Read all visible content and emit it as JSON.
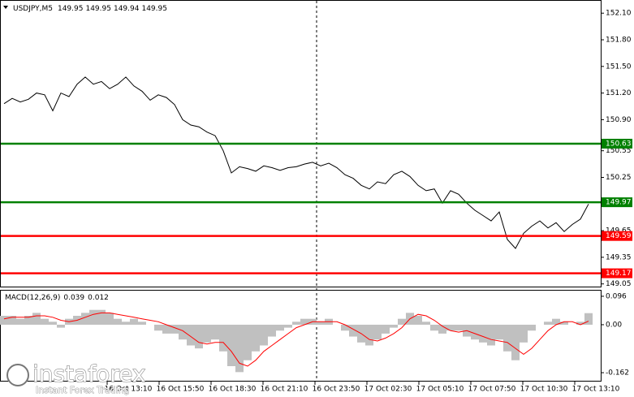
{
  "chart_data": [
    {
      "type": "line",
      "symbol": "USDJPY,M5",
      "ohlc": [
        149.95,
        149.95,
        149.94,
        149.95
      ],
      "color": "#000000",
      "values": [
        151.08,
        151.14,
        151.1,
        151.13,
        151.2,
        151.18,
        151.0,
        151.2,
        151.16,
        151.3,
        151.38,
        151.3,
        151.33,
        151.25,
        151.3,
        151.38,
        151.28,
        151.22,
        151.12,
        151.18,
        151.15,
        151.07,
        150.9,
        150.84,
        150.82,
        150.76,
        150.72,
        150.55,
        150.3,
        150.37,
        150.35,
        150.32,
        150.38,
        150.36,
        150.33,
        150.36,
        150.37,
        150.4,
        150.42,
        150.38,
        150.41,
        150.36,
        150.28,
        150.24,
        150.16,
        150.12,
        150.2,
        150.18,
        150.28,
        150.32,
        150.26,
        150.16,
        150.1,
        150.12,
        149.96,
        150.1,
        150.06,
        149.96,
        149.88,
        149.82,
        149.76,
        149.86,
        149.55,
        149.45,
        149.62,
        149.7,
        149.76,
        149.68,
        149.74,
        149.64,
        149.72,
        149.78,
        149.95
      ],
      "ylim": [
        149.02,
        152.23
      ],
      "yticks": [
        {
          "value": 152.1,
          "label": "152.10"
        },
        {
          "value": 151.8,
          "label": "151.80"
        },
        {
          "value": 151.5,
          "label": "151.50"
        },
        {
          "value": 151.2,
          "label": "151.20"
        },
        {
          "value": 150.9,
          "label": "150.90"
        },
        150.55,
        150.25,
        149.65,
        149.35,
        149.05
      ],
      "levels": [
        {
          "value": 150.63,
          "color": "#008000"
        },
        {
          "value": 149.97,
          "color": "#008000"
        },
        {
          "value": 149.59,
          "color": "#ff0000"
        },
        {
          "value": 149.17,
          "color": "#ff0000"
        }
      ],
      "time_labels": [
        "16 Oct 13:10",
        "16 Oct 15:50",
        "16 Oct 18:30",
        "16 Oct 21:10",
        "16 Oct 23:50",
        "17 Oct 02:30",
        "17 Oct 05:10",
        "17 Oct 07:50",
        "17 Oct 10:30",
        "17 Oct 13:10"
      ]
    },
    {
      "type": "macd",
      "name": "MACD(12,26,9)",
      "current": [
        0.039,
        0.012
      ],
      "histogram_color": "#c0c0c0",
      "signal_color": "#ff0000",
      "histogram": [
        0.03,
        0.03,
        0.02,
        0.03,
        0.04,
        0.02,
        0.01,
        -0.01,
        0.02,
        0.03,
        0.04,
        0.05,
        0.05,
        0.04,
        0.02,
        0.01,
        0.02,
        0.01,
        0,
        -0.02,
        -0.03,
        -0.03,
        -0.05,
        -0.07,
        -0.08,
        -0.06,
        -0.05,
        -0.09,
        -0.14,
        -0.16,
        -0.12,
        -0.09,
        -0.07,
        -0.04,
        -0.02,
        -0.01,
        0.01,
        0.02,
        0.02,
        0.01,
        0.02,
        0,
        -0.02,
        -0.04,
        -0.06,
        -0.07,
        -0.05,
        -0.03,
        -0.01,
        0.02,
        0.04,
        0.03,
        0.01,
        -0.02,
        -0.03,
        -0.02,
        -0.02,
        -0.04,
        -0.05,
        -0.06,
        -0.07,
        -0.05,
        -0.09,
        -0.12,
        -0.06,
        -0.02,
        0,
        0.01,
        0.02,
        0.01,
        0,
        0.01,
        0.039
      ],
      "signal": [
        0.02,
        0.025,
        0.025,
        0.025,
        0.03,
        0.03,
        0.025,
        0.015,
        0.01,
        0.015,
        0.025,
        0.035,
        0.04,
        0.04,
        0.035,
        0.03,
        0.025,
        0.02,
        0.015,
        0.01,
        0,
        -0.01,
        -0.02,
        -0.04,
        -0.06,
        -0.065,
        -0.06,
        -0.06,
        -0.09,
        -0.13,
        -0.14,
        -0.12,
        -0.09,
        -0.07,
        -0.05,
        -0.03,
        -0.01,
        0,
        0.01,
        0.01,
        0.01,
        0.01,
        0,
        -0.015,
        -0.03,
        -0.05,
        -0.055,
        -0.045,
        -0.03,
        -0.01,
        0.02,
        0.035,
        0.03,
        0.015,
        -0.005,
        -0.02,
        -0.025,
        -0.02,
        -0.03,
        -0.04,
        -0.05,
        -0.055,
        -0.06,
        -0.08,
        -0.1,
        -0.08,
        -0.05,
        -0.02,
        0,
        0.01,
        0.01,
        0,
        0.012
      ],
      "ylim": [
        -0.192,
        0.115
      ],
      "yticks": [
        0.096,
        {
          "value": 0,
          "label": "0.00"
        },
        -0.162
      ]
    }
  ],
  "watermark": {
    "brand": "instaforex",
    "tagline": "Instant Forex Trading"
  }
}
